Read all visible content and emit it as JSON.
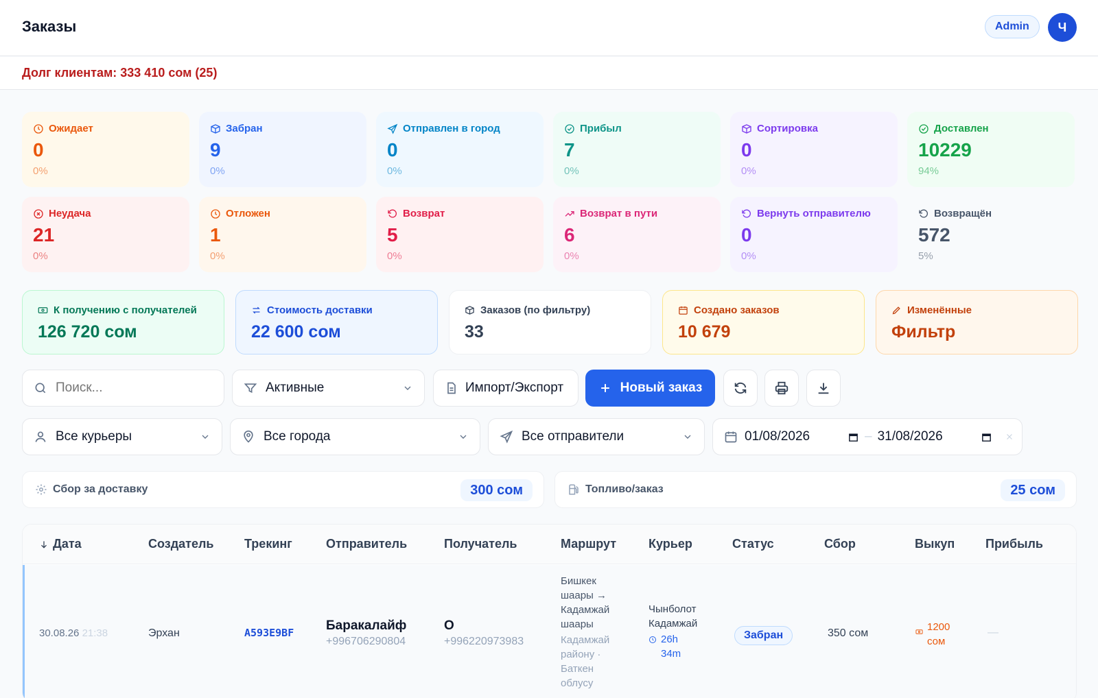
{
  "header": {
    "title": "Заказы",
    "role": "Admin",
    "avatar_initial": "Ч"
  },
  "debt": {
    "text": "Долг клиентам: 333 410 сом (25)"
  },
  "stats": [
    {
      "label": "Ожидает",
      "value": "0",
      "pct": "0%",
      "icon": "clock-icon",
      "color": "#ea580c",
      "bg": "#fff9eb"
    },
    {
      "label": "Забран",
      "value": "9",
      "pct": "0%",
      "icon": "box-icon",
      "color": "#2563eb",
      "bg": "#f0f5ff"
    },
    {
      "label": "Отправлен в город",
      "value": "0",
      "pct": "0%",
      "icon": "send-icon",
      "color": "#0284c7",
      "bg": "#eff8ff"
    },
    {
      "label": "Прибыл",
      "value": "7",
      "pct": "0%",
      "icon": "check-circle-icon",
      "color": "#0d9488",
      "bg": "#effcf7"
    },
    {
      "label": "Сортировка",
      "value": "0",
      "pct": "0%",
      "icon": "box-icon",
      "color": "#7c3aed",
      "bg": "#f6f3ff"
    },
    {
      "label": "Доставлен",
      "value": "10229",
      "pct": "94%",
      "icon": "check-circle-icon",
      "color": "#16a34a",
      "bg": "#f0fdf4"
    },
    {
      "label": "Неудача",
      "value": "21",
      "pct": "0%",
      "icon": "x-circle-icon",
      "color": "#dc2626",
      "bg": "#fef2f2"
    },
    {
      "label": "Отложен",
      "value": "1",
      "pct": "0%",
      "icon": "clock-icon",
      "color": "#ea580c",
      "bg": "#fff7ed"
    },
    {
      "label": "Возврат",
      "value": "5",
      "pct": "0%",
      "icon": "rotate-ccw-icon",
      "color": "#e11d48",
      "bg": "#fff1f2"
    },
    {
      "label": "Возврат в пути",
      "value": "6",
      "pct": "0%",
      "icon": "trending-up-icon",
      "color": "#db2777",
      "bg": "#fdf2f8"
    },
    {
      "label": "Вернуть отправителю",
      "value": "0",
      "pct": "0%",
      "icon": "rotate-ccw-icon",
      "color": "#7c3aed",
      "bg": "#f6f3ff"
    },
    {
      "label": "Возвращён",
      "value": "572",
      "pct": "5%",
      "icon": "rotate-ccw-icon",
      "color": "#475569",
      "bg": "#f8fafc"
    }
  ],
  "summary": [
    {
      "label": "К получению с получателей",
      "value": "126 720 сом",
      "icon": "banknote-icon",
      "color": "#047857",
      "bg": "#ecfdf5",
      "border": "#bbf7d0"
    },
    {
      "label": "Стоимость доставки",
      "value": "22 600 сом",
      "icon": "arrows-exchange-icon",
      "color": "#1d4ed8",
      "bg": "#eff6ff",
      "border": "#bfdbfe"
    },
    {
      "label": "Заказов (по фильтру)",
      "value": "33",
      "icon": "package-icon",
      "color": "#334155",
      "bg": "#ffffff",
      "border": "#eef0f3"
    },
    {
      "label": "Создано заказов",
      "value": "10 679",
      "icon": "calendar-icon",
      "color": "#c2410c",
      "bg": "#fffbeb",
      "border": "#fde68a"
    },
    {
      "label": "Изменённые",
      "value": "Фильтр",
      "icon": "pencil-icon",
      "color": "#c2410c",
      "bg": "#fff7ed",
      "border": "#fed7aa"
    }
  ],
  "toolbar": {
    "search_placeholder": "Поиск...",
    "status_filter": "Активные",
    "import_export": "Импорт/Экспорт",
    "new_order": "Новый заказ"
  },
  "filters": {
    "couriers": "Все курьеры",
    "cities": "Все города",
    "senders": "Все отправители",
    "date_from": "01/08/2026",
    "date_sep": "–",
    "date_to": "31/08/2026"
  },
  "fees": {
    "delivery_label": "Сбор за доставку",
    "delivery_value": "300 сом",
    "fuel_label": "Топливо/заказ",
    "fuel_value": "25 сом"
  },
  "table": {
    "columns": [
      "Дата",
      "Создатель",
      "Трекинг",
      "Отправитель",
      "Получатель",
      "Маршрут",
      "Курьер",
      "Статус",
      "Сбор",
      "Выкуп",
      "Прибыль"
    ],
    "row": {
      "date": "30.08.26",
      "time": "21:38",
      "creator": "Эрхан",
      "tracking": "A593E9BF",
      "sender_name": "Баракалайф",
      "sender_phone": "+996706290804",
      "recipient_name": "О",
      "recipient_phone": "+996220973983",
      "route_lines": [
        "Бишкек",
        "шаары →",
        "Кадамжай",
        "шаары"
      ],
      "route_sub_lines": [
        "Кадамжай",
        "району ·",
        "Баткен",
        "облусу"
      ],
      "courier_lines": [
        "Чынболот",
        "Кадамжай"
      ],
      "courier_eta_lines": [
        "26h",
        "34m"
      ],
      "status": "Забран",
      "fee": "350 сом",
      "cod_lines": [
        "1200",
        "сом"
      ],
      "profit": "—"
    }
  }
}
